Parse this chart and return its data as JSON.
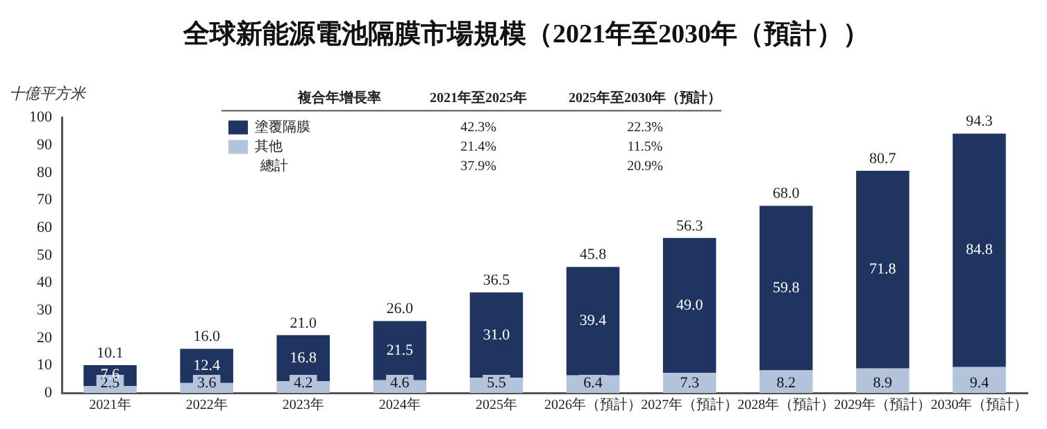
{
  "chart_data": {
    "type": "bar",
    "title": "全球新能源電池隔膜市場規模（2021年至2030年（預計））",
    "ylabel": "十億平方米",
    "categories": [
      "2021年",
      "2022年",
      "2023年",
      "2024年",
      "2025年",
      "2026年（預計）",
      "2027年（預計）",
      "2028年（預計）",
      "2029年（預計）",
      "2030年（預計）"
    ],
    "series": [
      {
        "name": "其他",
        "color": "#b4c3dc",
        "values": [
          2.5,
          3.6,
          4.2,
          4.6,
          5.5,
          6.4,
          7.3,
          8.2,
          8.9,
          9.4
        ],
        "value_labels": [
          "2.5",
          "3.6",
          "4.2",
          "4.6",
          "5.5",
          "6.4",
          "7.3",
          "8.2",
          "8.9",
          "9.4"
        ]
      },
      {
        "name": "塗覆隔膜",
        "color": "#1f3461",
        "values": [
          7.6,
          12.4,
          16.8,
          21.5,
          31.0,
          39.4,
          49.0,
          59.8,
          71.8,
          84.8
        ],
        "value_labels": [
          "7.6",
          "12.4",
          "16.8",
          "21.5",
          "31.0",
          "39.4",
          "49.0",
          "59.8",
          "71.8",
          "84.8"
        ]
      }
    ],
    "stacked": true,
    "totals": [
      "10.1",
      "16.0",
      "21.0",
      "26.0",
      "36.5",
      "45.8",
      "56.3",
      "68.0",
      "80.7",
      "94.3"
    ],
    "ylim": [
      0,
      100
    ],
    "yticks": [
      0,
      10,
      20,
      30,
      40,
      50,
      60,
      70,
      80,
      90,
      100
    ],
    "grid": false,
    "legend": "top left",
    "annotations": [
      "複合年增長率",
      "2021年至2025年",
      "2025年至2030年（預計）",
      "42.3%",
      "22.3%",
      "21.4%",
      "11.5%",
      "總計",
      "37.9%",
      "20.9%"
    ]
  }
}
